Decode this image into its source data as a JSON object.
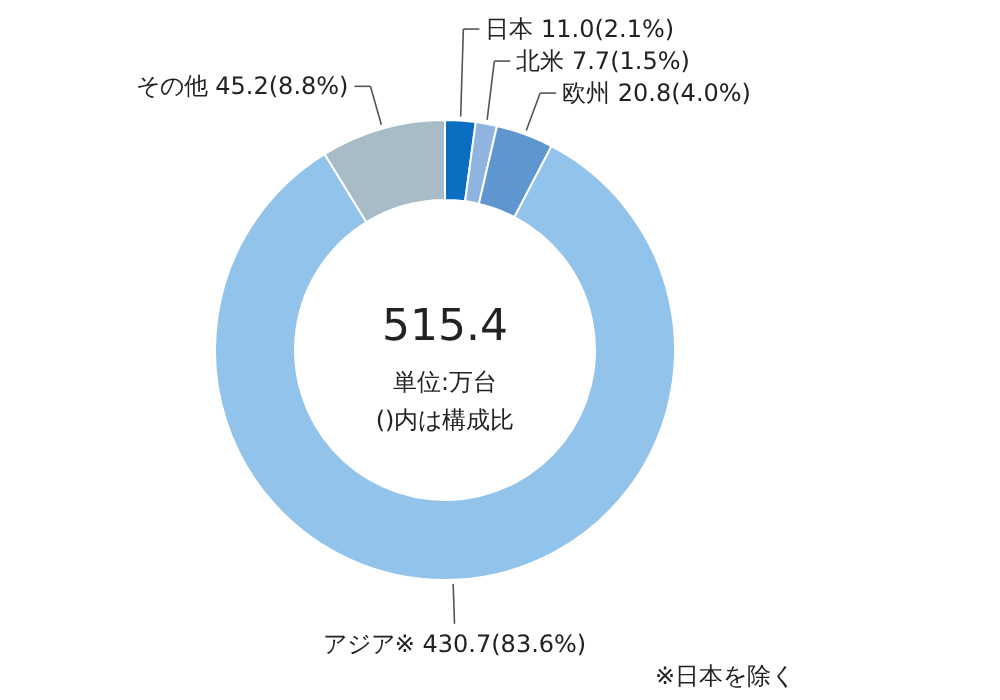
{
  "chart_data": {
    "type": "donut",
    "categories": [
      "日本",
      "北米",
      "欧州",
      "アジア※",
      "その他"
    ],
    "values": [
      11.0,
      7.7,
      20.8,
      430.7,
      45.2
    ],
    "value_labels": [
      "11.0(2.1%)",
      "7.7(1.5%)",
      "20.8(4.0%)",
      "430.7(83.6%)",
      "45.2(8.8%)"
    ],
    "colors": [
      "#0a6fc0",
      "#8fb4e0",
      "#5f96d0",
      "#92c3ea",
      "#a8bcc8"
    ],
    "annotations": [
      "515.4",
      "単位:万台",
      "()内は構成比",
      "※日本を除く"
    ]
  }
}
